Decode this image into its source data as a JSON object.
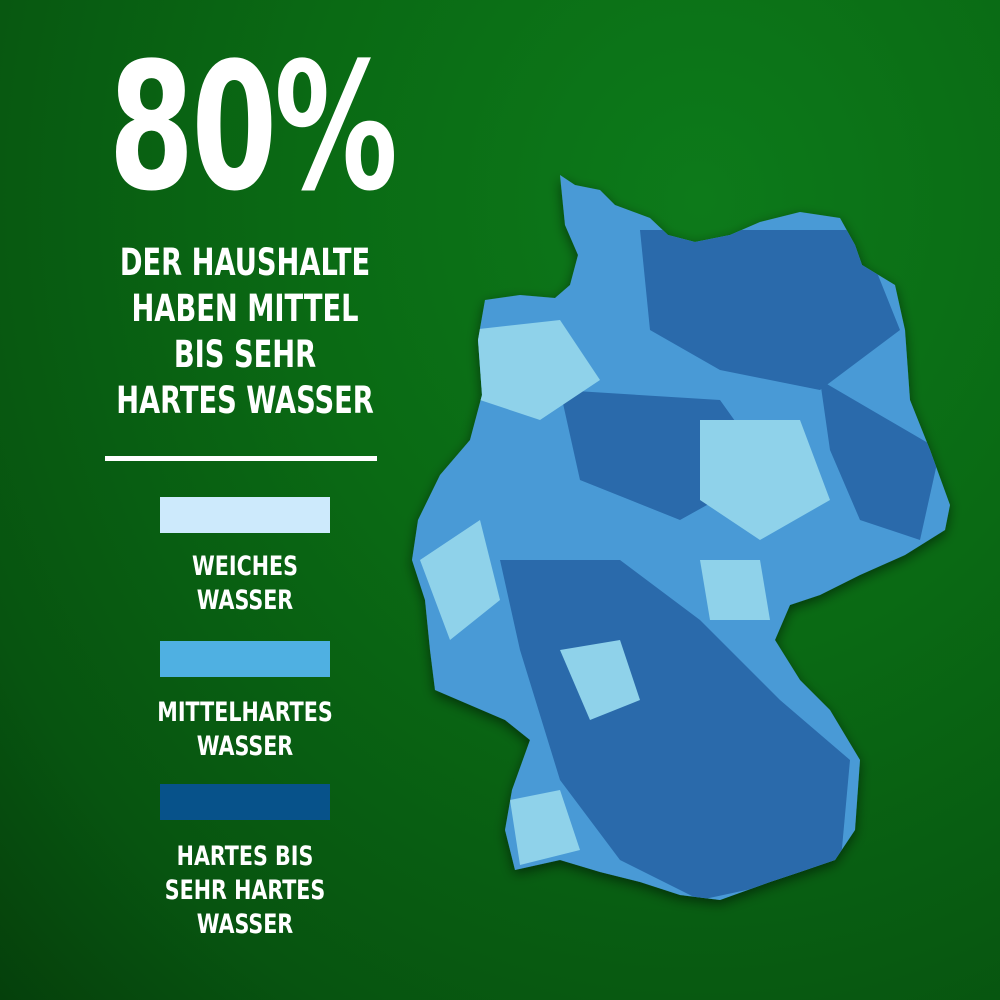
{
  "headline": {
    "value": "80%",
    "lines": [
      "DER HAUSHALTE",
      "HABEN MITTEL",
      "BIS SEHR",
      "HARTES WASSER"
    ]
  },
  "legend": [
    {
      "label_lines": [
        "WEICHES",
        "WASSER"
      ],
      "color": "#cdeafc"
    },
    {
      "label_lines": [
        "MITTELHARTES",
        "WASSER"
      ],
      "color": "#4fb0e2"
    },
    {
      "label_lines": [
        "HARTES BIS",
        "SEHR HARTES",
        "WASSER"
      ],
      "color": "#07528a"
    }
  ],
  "map": {
    "region": "Germany",
    "colors": {
      "soft": "#8fd2ea",
      "medium": "#4a9ad6",
      "hard": "#2a6aab"
    }
  }
}
